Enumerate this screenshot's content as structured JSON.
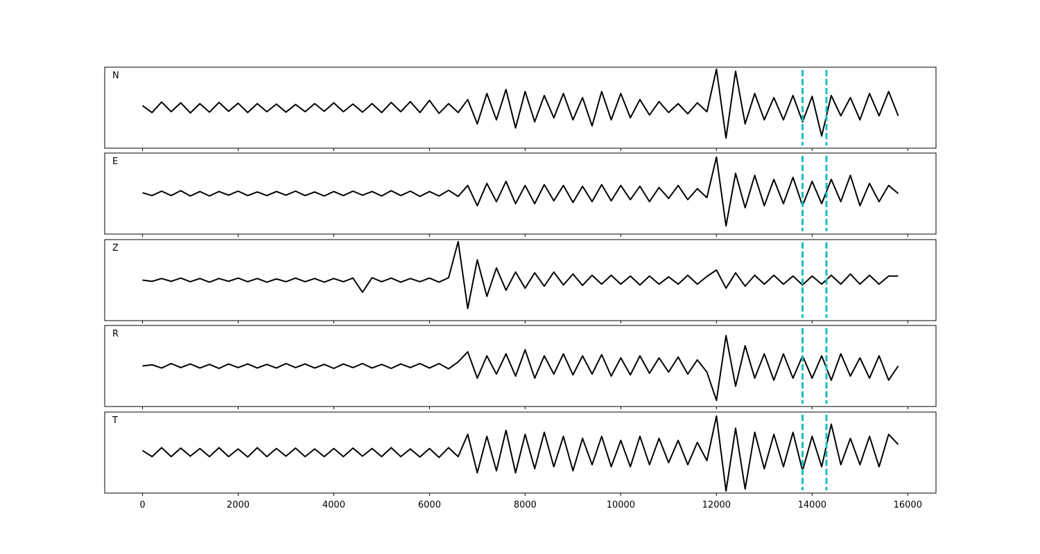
{
  "chart_data": [
    {
      "type": "line",
      "label": "N",
      "color": "#000000",
      "vline_color": "#17bebe",
      "vlines": [
        13800,
        14300
      ],
      "xlim": [
        -790,
        16590
      ],
      "ylim": [
        -1,
        1
      ],
      "xticks": [
        0,
        2000,
        4000,
        6000,
        8000,
        10000,
        12000,
        14000,
        16000
      ],
      "x": [
        0,
        200,
        400,
        600,
        800,
        1000,
        1200,
        1400,
        1600,
        1800,
        2000,
        2200,
        2400,
        2600,
        2800,
        3000,
        3200,
        3400,
        3600,
        3800,
        4000,
        4200,
        4400,
        4600,
        4800,
        5000,
        5200,
        5400,
        5600,
        5800,
        6000,
        6200,
        6400,
        6600,
        6800,
        7000,
        7200,
        7400,
        7600,
        7800,
        8000,
        8200,
        8400,
        8600,
        8800,
        9000,
        9200,
        9400,
        9600,
        9800,
        10000,
        10200,
        10400,
        10600,
        10800,
        11000,
        11200,
        11400,
        11600,
        11800,
        12000,
        12200,
        12400,
        12600,
        12800,
        13000,
        13200,
        13400,
        13600,
        13800,
        14000,
        14200,
        14400,
        14600,
        14800,
        15000,
        15200,
        15400,
        15600,
        15800
      ],
      "values": [
        0.05,
        -0.12,
        0.14,
        -0.1,
        0.12,
        -0.13,
        0.1,
        -0.11,
        0.13,
        -0.09,
        0.11,
        -0.12,
        0.1,
        -0.1,
        0.09,
        -0.11,
        0.08,
        -0.1,
        0.1,
        -0.09,
        0.12,
        -0.1,
        0.09,
        -0.11,
        0.1,
        -0.12,
        0.13,
        -0.1,
        0.15,
        -0.12,
        0.18,
        -0.14,
        0.1,
        -0.12,
        0.2,
        -0.4,
        0.35,
        -0.3,
        0.45,
        -0.5,
        0.4,
        -0.35,
        0.3,
        -0.25,
        0.35,
        -0.3,
        0.25,
        -0.45,
        0.4,
        -0.3,
        0.35,
        -0.25,
        0.2,
        -0.18,
        0.15,
        -0.12,
        0.1,
        -0.15,
        0.12,
        -0.1,
        0.95,
        -0.75,
        0.9,
        -0.4,
        0.35,
        -0.3,
        0.25,
        -0.3,
        0.3,
        -0.35,
        0.28,
        -0.7,
        0.3,
        -0.2,
        0.25,
        -0.3,
        0.35,
        -0.2,
        0.4,
        -0.2
      ]
    },
    {
      "type": "line",
      "label": "E",
      "color": "#000000",
      "vline_color": "#17bebe",
      "vlines": [
        13800,
        14300
      ],
      "xlim": [
        -790,
        16590
      ],
      "ylim": [
        -1,
        1
      ],
      "xticks": [
        0,
        2000,
        4000,
        6000,
        8000,
        10000,
        12000,
        14000,
        16000
      ],
      "x": [
        0,
        200,
        400,
        600,
        800,
        1000,
        1200,
        1400,
        1600,
        1800,
        2000,
        2200,
        2400,
        2600,
        2800,
        3000,
        3200,
        3400,
        3600,
        3800,
        4000,
        4200,
        4400,
        4600,
        4800,
        5000,
        5200,
        5400,
        5600,
        5800,
        6000,
        6200,
        6400,
        6600,
        6800,
        7000,
        7200,
        7400,
        7600,
        7800,
        8000,
        8200,
        8400,
        8600,
        8800,
        9000,
        9200,
        9400,
        9600,
        9800,
        10000,
        10200,
        10400,
        10600,
        10800,
        11000,
        11200,
        11400,
        11600,
        11800,
        12000,
        12200,
        12400,
        12600,
        12800,
        13000,
        13200,
        13400,
        13600,
        13800,
        14000,
        14200,
        14400,
        14600,
        14800,
        15000,
        15200,
        15400,
        15600,
        15800
      ],
      "values": [
        0.02,
        -0.05,
        0.06,
        -0.05,
        0.07,
        -0.06,
        0.05,
        -0.06,
        0.05,
        -0.04,
        0.06,
        -0.05,
        0.04,
        -0.05,
        0.05,
        -0.04,
        0.06,
        -0.05,
        0.04,
        -0.06,
        0.05,
        -0.05,
        0.06,
        -0.04,
        0.05,
        -0.06,
        0.07,
        -0.05,
        0.06,
        -0.07,
        0.05,
        -0.06,
        0.08,
        -0.07,
        0.2,
        -0.3,
        0.25,
        -0.2,
        0.3,
        -0.25,
        0.2,
        -0.25,
        0.22,
        -0.18,
        0.2,
        -0.22,
        0.18,
        -0.2,
        0.22,
        -0.18,
        0.2,
        -0.15,
        0.18,
        -0.2,
        0.15,
        -0.12,
        0.2,
        -0.15,
        0.12,
        -0.1,
        0.9,
        -0.8,
        0.5,
        -0.35,
        0.45,
        -0.3,
        0.35,
        -0.25,
        0.4,
        -0.3,
        0.3,
        -0.25,
        0.35,
        -0.2,
        0.45,
        -0.3,
        0.25,
        -0.2,
        0.2,
        0.0
      ]
    },
    {
      "type": "line",
      "label": "Z",
      "color": "#000000",
      "vline_color": "#17bebe",
      "vlines": [
        13800,
        14300
      ],
      "xlim": [
        -790,
        16590
      ],
      "ylim": [
        -1,
        1
      ],
      "xticks": [
        0,
        2000,
        4000,
        6000,
        8000,
        10000,
        12000,
        14000,
        16000
      ],
      "x": [
        0,
        200,
        400,
        600,
        800,
        1000,
        1200,
        1400,
        1600,
        1800,
        2000,
        2200,
        2400,
        2600,
        2800,
        3000,
        3200,
        3400,
        3600,
        3800,
        4000,
        4200,
        4400,
        4600,
        4800,
        5000,
        5200,
        5400,
        5600,
        5800,
        6000,
        6200,
        6400,
        6600,
        6800,
        7000,
        7200,
        7400,
        7600,
        7800,
        8000,
        8200,
        8400,
        8600,
        8800,
        9000,
        9200,
        9400,
        9600,
        9800,
        10000,
        10200,
        10400,
        10600,
        10800,
        11000,
        11200,
        11400,
        11600,
        11800,
        12000,
        12200,
        12400,
        12600,
        12800,
        13000,
        13200,
        13400,
        13600,
        13800,
        14000,
        14200,
        14400,
        14600,
        14800,
        15000,
        15200,
        15400,
        15600,
        15800
      ],
      "values": [
        0.0,
        -0.03,
        0.04,
        -0.03,
        0.05,
        -0.04,
        0.04,
        -0.05,
        0.04,
        -0.03,
        0.05,
        -0.04,
        0.04,
        -0.05,
        0.03,
        -0.04,
        0.05,
        -0.04,
        0.04,
        -0.05,
        0.04,
        -0.04,
        0.05,
        -0.3,
        0.06,
        -0.04,
        0.05,
        -0.05,
        0.04,
        -0.04,
        0.05,
        -0.05,
        0.06,
        0.95,
        -0.7,
        0.5,
        -0.4,
        0.3,
        -0.25,
        0.2,
        -0.2,
        0.18,
        -0.15,
        0.2,
        -0.12,
        0.15,
        -0.13,
        0.12,
        -0.1,
        0.12,
        -0.1,
        0.1,
        -0.12,
        0.1,
        -0.1,
        0.08,
        -0.1,
        0.12,
        -0.1,
        0.09,
        0.25,
        -0.2,
        0.18,
        -0.15,
        0.12,
        -0.1,
        0.12,
        -0.1,
        0.1,
        -0.12,
        0.1,
        -0.1,
        0.12,
        -0.1,
        0.15,
        -0.1,
        0.12,
        -0.1,
        0.1,
        0.1
      ]
    },
    {
      "type": "line",
      "label": "R",
      "color": "#000000",
      "vline_color": "#17bebe",
      "vlines": [
        13800,
        14300
      ],
      "xlim": [
        -790,
        16590
      ],
      "ylim": [
        -1,
        1
      ],
      "xticks": [
        0,
        2000,
        4000,
        6000,
        8000,
        10000,
        12000,
        14000,
        16000
      ],
      "x": [
        0,
        200,
        400,
        600,
        800,
        1000,
        1200,
        1400,
        1600,
        1800,
        2000,
        2200,
        2400,
        2600,
        2800,
        3000,
        3200,
        3400,
        3600,
        3800,
        4000,
        4200,
        4400,
        4600,
        4800,
        5000,
        5200,
        5400,
        5600,
        5800,
        6000,
        6200,
        6400,
        6600,
        6800,
        7000,
        7200,
        7400,
        7600,
        7800,
        8000,
        8200,
        8400,
        8600,
        8800,
        9000,
        9200,
        9400,
        9600,
        9800,
        10000,
        10200,
        10400,
        10600,
        10800,
        11000,
        11200,
        11400,
        11600,
        11800,
        12000,
        12200,
        12400,
        12600,
        12800,
        13000,
        13200,
        13400,
        13600,
        13800,
        14000,
        14200,
        14400,
        14600,
        14800,
        15000,
        15200,
        15400,
        15600,
        15800
      ],
      "values": [
        0.0,
        0.03,
        -0.05,
        0.06,
        -0.04,
        0.05,
        -0.05,
        0.04,
        -0.06,
        0.05,
        -0.04,
        0.05,
        -0.05,
        0.04,
        -0.05,
        0.06,
        -0.04,
        0.05,
        -0.05,
        0.04,
        -0.06,
        0.05,
        -0.04,
        0.06,
        -0.05,
        0.04,
        -0.06,
        0.05,
        -0.04,
        0.06,
        -0.05,
        0.06,
        -0.07,
        0.1,
        0.35,
        -0.3,
        0.25,
        -0.2,
        0.3,
        -0.25,
        0.4,
        -0.3,
        0.25,
        -0.2,
        0.3,
        -0.22,
        0.25,
        -0.2,
        0.28,
        -0.25,
        0.2,
        -0.22,
        0.25,
        -0.18,
        0.2,
        -0.15,
        0.22,
        -0.2,
        0.15,
        -0.15,
        -0.85,
        0.75,
        -0.5,
        0.5,
        -0.3,
        0.3,
        -0.35,
        0.3,
        -0.3,
        0.25,
        -0.3,
        0.25,
        -0.35,
        0.3,
        -0.25,
        0.2,
        -0.3,
        0.25,
        -0.35,
        0.0
      ]
    },
    {
      "type": "line",
      "label": "T",
      "color": "#000000",
      "vline_color": "#17bebe",
      "vlines": [
        13800,
        14300
      ],
      "xlim": [
        -790,
        16590
      ],
      "ylim": [
        -1,
        1
      ],
      "xticks": [
        0,
        2000,
        4000,
        6000,
        8000,
        10000,
        12000,
        14000,
        16000
      ],
      "x": [
        0,
        200,
        400,
        600,
        800,
        1000,
        1200,
        1400,
        1600,
        1800,
        2000,
        2200,
        2400,
        2600,
        2800,
        3000,
        3200,
        3400,
        3600,
        3800,
        4000,
        4200,
        4400,
        4600,
        4800,
        5000,
        5200,
        5400,
        5600,
        5800,
        6000,
        6200,
        6400,
        6600,
        6800,
        7000,
        7200,
        7400,
        7600,
        7800,
        8000,
        8200,
        8400,
        8600,
        8800,
        9000,
        9200,
        9400,
        9600,
        9800,
        10000,
        10200,
        10400,
        10600,
        10800,
        11000,
        11200,
        11400,
        11600,
        11800,
        12000,
        12200,
        12400,
        12600,
        12800,
        13000,
        13200,
        13400,
        13600,
        13800,
        14000,
        14200,
        14400,
        14600,
        14800,
        15000,
        15200,
        15400,
        15600,
        15800
      ],
      "values": [
        0.05,
        -0.1,
        0.12,
        -0.1,
        0.11,
        -0.09,
        0.1,
        -0.1,
        0.12,
        -0.1,
        0.09,
        -0.11,
        0.12,
        -0.1,
        0.1,
        -0.09,
        0.11,
        -0.1,
        0.09,
        -0.1,
        0.1,
        -0.1,
        0.11,
        -0.09,
        0.1,
        -0.1,
        0.12,
        -0.1,
        0.09,
        -0.11,
        0.1,
        -0.12,
        0.12,
        -0.1,
        0.45,
        -0.5,
        0.4,
        -0.45,
        0.55,
        -0.5,
        0.45,
        -0.4,
        0.5,
        -0.35,
        0.4,
        -0.45,
        0.35,
        -0.3,
        0.4,
        -0.35,
        0.3,
        -0.35,
        0.4,
        -0.3,
        0.35,
        -0.25,
        0.3,
        -0.3,
        0.25,
        -0.2,
        0.9,
        -0.95,
        0.6,
        -0.9,
        0.5,
        -0.4,
        0.45,
        -0.35,
        0.5,
        -0.45,
        0.4,
        -0.35,
        0.7,
        -0.3,
        0.35,
        -0.3,
        0.4,
        -0.35,
        0.45,
        0.2
      ]
    }
  ]
}
